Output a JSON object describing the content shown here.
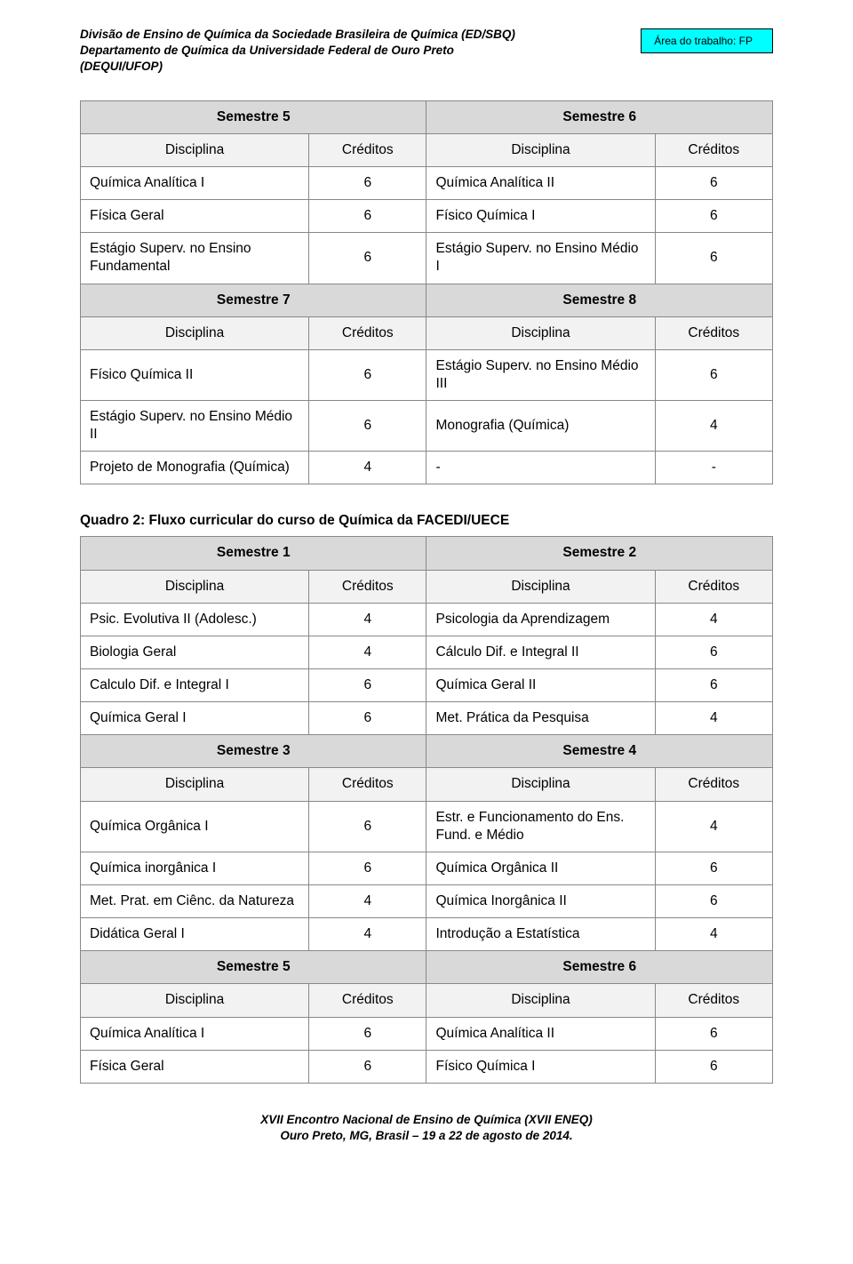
{
  "header": {
    "org_line1": "Divisão de Ensino de Química da Sociedade Brasileira de Química (ED/SBQ)",
    "org_line2": "Departamento de Química da Universidade Federal de Ouro Preto",
    "org_line3": "(DEQUI/UFOP)",
    "area_label": "Área do trabalho: ",
    "area_code": "FP"
  },
  "table1": {
    "sem5": "Semestre 5",
    "sem6": "Semestre 6",
    "sem7": "Semestre 7",
    "sem8": "Semestre 8",
    "col_disc": "Disciplina",
    "col_cred": "Créditos",
    "rows56": [
      [
        "Química Analítica I",
        "6",
        "Química Analítica II",
        "6"
      ],
      [
        "Física Geral",
        "6",
        "Físico Química I",
        "6"
      ],
      [
        "Estágio Superv. no Ensino Fundamental",
        "6",
        "Estágio Superv. no Ensino Médio I",
        "6"
      ]
    ],
    "rows78": [
      [
        "Físico Química II",
        "6",
        "Estágio Superv. no Ensino Médio III",
        "6"
      ],
      [
        "Estágio Superv. no Ensino Médio II",
        "6",
        "Monografia (Química)",
        "4"
      ],
      [
        "Projeto de Monografia (Química)",
        "4",
        "-",
        "-"
      ]
    ]
  },
  "table2": {
    "caption": "Quadro 2: Fluxo curricular do curso de Química da FACEDI/UECE",
    "sem1": "Semestre 1",
    "sem2": "Semestre 2",
    "sem3": "Semestre 3",
    "sem4": "Semestre 4",
    "sem5": "Semestre 5",
    "sem6": "Semestre 6",
    "col_disc": "Disciplina",
    "col_cred": "Créditos",
    "rows12": [
      [
        "Psic. Evolutiva II (Adolesc.)",
        "4",
        "Psicologia da Aprendizagem",
        "4"
      ],
      [
        "Biologia Geral",
        "4",
        "Cálculo Dif. e Integral II",
        "6"
      ],
      [
        "Calculo Dif. e Integral I",
        "6",
        "Química Geral II",
        "6"
      ],
      [
        "Química Geral I",
        "6",
        "Met. Prática da Pesquisa",
        "4"
      ]
    ],
    "rows34": [
      [
        "Química Orgânica I",
        "6",
        "Estr. e Funcionamento do Ens. Fund. e Médio",
        "4"
      ],
      [
        "Química inorgânica I",
        "6",
        "Química Orgânica II",
        "6"
      ],
      [
        "Met. Prat. em Ciênc. da Natureza",
        "4",
        "Química Inorgânica II",
        "6"
      ],
      [
        "Didática Geral I",
        "4",
        "Introdução a Estatística",
        "4"
      ]
    ],
    "rows56": [
      [
        "Química Analítica I",
        "6",
        "Química Analítica II",
        "6"
      ],
      [
        "Física Geral",
        "6",
        "Físico Química I",
        "6"
      ]
    ]
  },
  "footer": {
    "line1": "XVII Encontro Nacional de Ensino de Química (XVII ENEQ)",
    "line2": "Ouro Preto, MG, Brasil – 19 a 22 de agosto de 2014."
  }
}
